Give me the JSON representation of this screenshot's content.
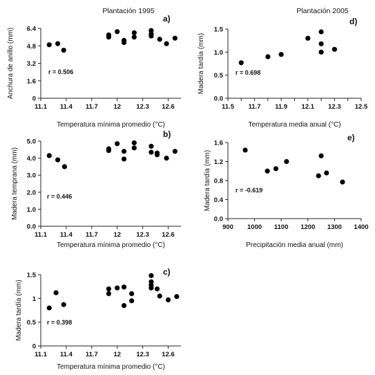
{
  "chart_data": [
    {
      "id": "a",
      "type": "scatter",
      "panel_label": "a)",
      "title": "Plantación 1995",
      "xlabel": "Temperatura mínima promedio (°C)",
      "ylabel": "Anchura de anillo (mm)",
      "annotation": "r = 0.506",
      "xlim": [
        11.1,
        12.75
      ],
      "ylim": [
        0,
        6.4
      ],
      "xticks": [
        11.1,
        11.4,
        11.7,
        12,
        12.3,
        12.6
      ],
      "xtick_labels": [
        "11.1",
        "11.4",
        "11.7",
        "12",
        "12.3",
        "12.6"
      ],
      "yticks": [
        0,
        1.6,
        3.2,
        4.8,
        6.4
      ],
      "ytick_labels": [
        "0",
        "1.6",
        "3.2",
        "4.8",
        "6.4"
      ],
      "points": [
        {
          "x": 11.2,
          "y": 4.9
        },
        {
          "x": 11.3,
          "y": 5.0
        },
        {
          "x": 11.37,
          "y": 4.4
        },
        {
          "x": 11.9,
          "y": 5.6
        },
        {
          "x": 11.9,
          "y": 5.8
        },
        {
          "x": 12.0,
          "y": 6.1
        },
        {
          "x": 12.08,
          "y": 5.3
        },
        {
          "x": 12.08,
          "y": 5.1
        },
        {
          "x": 12.2,
          "y": 5.6
        },
        {
          "x": 12.2,
          "y": 6.0
        },
        {
          "x": 12.4,
          "y": 6.2
        },
        {
          "x": 12.4,
          "y": 5.9
        },
        {
          "x": 12.4,
          "y": 5.7
        },
        {
          "x": 12.5,
          "y": 5.4
        },
        {
          "x": 12.58,
          "y": 5.0
        },
        {
          "x": 12.68,
          "y": 5.5
        }
      ]
    },
    {
      "id": "b",
      "type": "scatter",
      "panel_label": "b)",
      "xlabel": "Temperatura mínima promedio (°C)",
      "ylabel": "Madera temprana (mm)",
      "annotation": "r = 0.446",
      "xlim": [
        11.1,
        12.75
      ],
      "ylim": [
        0,
        5.0
      ],
      "xticks": [
        11.1,
        11.4,
        11.7,
        12,
        12.3,
        12.6
      ],
      "xtick_labels": [
        "11.1",
        "11.4",
        "11.7",
        "12",
        "12.3",
        "12.6"
      ],
      "yticks": [
        0,
        1.0,
        2.0,
        3.0,
        4.0,
        5.0
      ],
      "ytick_labels": [
        "0.0",
        "1.0",
        "2.0",
        "3.0",
        "4.0",
        "5.0"
      ],
      "points": [
        {
          "x": 11.2,
          "y": 4.15
        },
        {
          "x": 11.3,
          "y": 3.9
        },
        {
          "x": 11.38,
          "y": 3.5
        },
        {
          "x": 11.9,
          "y": 4.55
        },
        {
          "x": 11.9,
          "y": 4.45
        },
        {
          "x": 12.0,
          "y": 4.85
        },
        {
          "x": 12.08,
          "y": 4.4
        },
        {
          "x": 12.08,
          "y": 3.95
        },
        {
          "x": 12.2,
          "y": 4.6
        },
        {
          "x": 12.2,
          "y": 4.9
        },
        {
          "x": 12.4,
          "y": 4.7
        },
        {
          "x": 12.4,
          "y": 4.35
        },
        {
          "x": 12.47,
          "y": 4.3
        },
        {
          "x": 12.47,
          "y": 4.2
        },
        {
          "x": 12.58,
          "y": 4.0
        },
        {
          "x": 12.68,
          "y": 4.4
        }
      ]
    },
    {
      "id": "c",
      "type": "scatter",
      "panel_label": "c)",
      "xlabel": "Temperatura mínima promedio (°C)",
      "ylabel": "Madera tardía (mm)",
      "annotation": "r = 0.398",
      "xlim": [
        11.1,
        12.75
      ],
      "ylim": [
        0,
        1.5
      ],
      "xticks": [
        11.1,
        11.4,
        11.7,
        12,
        12.3,
        12.6
      ],
      "xtick_labels": [
        "11.1",
        "11.4",
        "11.7",
        "12",
        "12.3",
        "12.6"
      ],
      "yticks": [
        0,
        0.5,
        1,
        1.5
      ],
      "ytick_labels": [
        "0",
        "0.5",
        "1",
        "1.5"
      ],
      "points": [
        {
          "x": 11.2,
          "y": 0.8
        },
        {
          "x": 11.28,
          "y": 1.12
        },
        {
          "x": 11.37,
          "y": 0.87
        },
        {
          "x": 11.9,
          "y": 1.2
        },
        {
          "x": 11.9,
          "y": 1.1
        },
        {
          "x": 12.0,
          "y": 1.22
        },
        {
          "x": 12.08,
          "y": 0.85
        },
        {
          "x": 12.08,
          "y": 1.24
        },
        {
          "x": 12.17,
          "y": 1.1
        },
        {
          "x": 12.17,
          "y": 0.95
        },
        {
          "x": 12.4,
          "y": 1.48
        },
        {
          "x": 12.4,
          "y": 1.35
        },
        {
          "x": 12.4,
          "y": 1.28
        },
        {
          "x": 12.4,
          "y": 1.22
        },
        {
          "x": 12.47,
          "y": 1.2
        },
        {
          "x": 12.5,
          "y": 1.05
        },
        {
          "x": 12.6,
          "y": 0.97
        },
        {
          "x": 12.7,
          "y": 1.04
        }
      ]
    },
    {
      "id": "d",
      "type": "scatter",
      "panel_label": "d)",
      "title": "Plantación 2005",
      "xlabel": "Temperatura media anual (°C)",
      "ylabel": "Madera tardía (mm)",
      "annotation": "r = 0.698",
      "xlim": [
        11.5,
        12.5
      ],
      "ylim": [
        0,
        1.5
      ],
      "xticks": [
        11.5,
        11.6,
        11.7,
        11.8,
        11.9,
        12.0,
        12.1,
        12.2,
        12.3,
        12.4,
        12.5
      ],
      "xtick_labels": [
        "11.5",
        "11.7",
        "11.9",
        "12.1",
        "12.3",
        "12.5"
      ],
      "xtick_label_values": [
        11.5,
        11.7,
        11.9,
        12.1,
        12.3,
        12.5
      ],
      "yticks": [
        0,
        0.5,
        1.0,
        1.5
      ],
      "ytick_labels": [
        "0.0",
        "0.5",
        "1.0",
        "1.5"
      ],
      "points": [
        {
          "x": 11.6,
          "y": 0.77
        },
        {
          "x": 11.8,
          "y": 0.9
        },
        {
          "x": 11.9,
          "y": 0.95
        },
        {
          "x": 12.1,
          "y": 1.3
        },
        {
          "x": 12.2,
          "y": 1.44
        },
        {
          "x": 12.2,
          "y": 1.18
        },
        {
          "x": 12.2,
          "y": 1.0
        },
        {
          "x": 12.3,
          "y": 1.06
        }
      ]
    },
    {
      "id": "e",
      "type": "scatter",
      "panel_label": "e)",
      "xlabel": "Precipitación media anual (mm)",
      "ylabel": "Madera tardía (mm)",
      "annotation": "r = -0.619",
      "xlim": [
        900,
        1400
      ],
      "ylim": [
        0,
        1.6
      ],
      "xticks": [
        900,
        1000,
        1100,
        1200,
        1300,
        1400
      ],
      "xtick_labels": [
        "900",
        "1000",
        "1100",
        "1200",
        "1300",
        "1400"
      ],
      "yticks": [
        0,
        0.4,
        0.8,
        1.2,
        1.6
      ],
      "ytick_labels": [
        "0.0",
        "0.4",
        "0.8",
        "1.2",
        "1.6"
      ],
      "points": [
        {
          "x": 965,
          "y": 1.44
        },
        {
          "x": 1048,
          "y": 1.0
        },
        {
          "x": 1080,
          "y": 1.05
        },
        {
          "x": 1120,
          "y": 1.2
        },
        {
          "x": 1240,
          "y": 0.9
        },
        {
          "x": 1250,
          "y": 1.32
        },
        {
          "x": 1270,
          "y": 0.96
        },
        {
          "x": 1330,
          "y": 0.77
        }
      ]
    }
  ]
}
